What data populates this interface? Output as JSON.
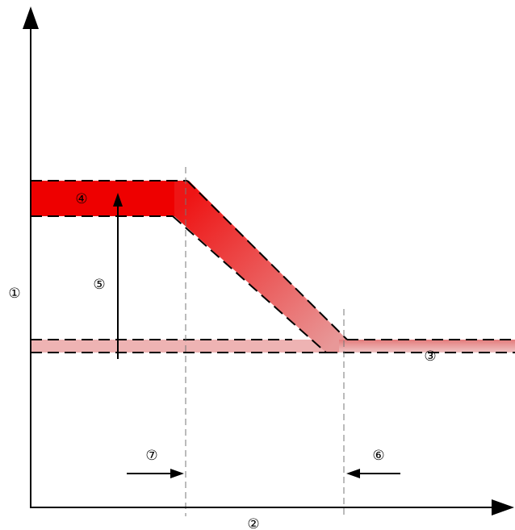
{
  "labels": {
    "y_axis": "①",
    "x_axis": "②",
    "lower_band": "③",
    "upper_band": "④",
    "vertical_shift": "⑤",
    "right_boundary": "⑥",
    "left_boundary": "⑦"
  },
  "colors": {
    "upper_band": "#ee0000",
    "lower_band": "#eeb3b3",
    "transition_start": "#ee1515",
    "transition_end": "#e89898",
    "axis": "#000000",
    "dashed_border": "#000000",
    "guide_line": "#777777"
  }
}
